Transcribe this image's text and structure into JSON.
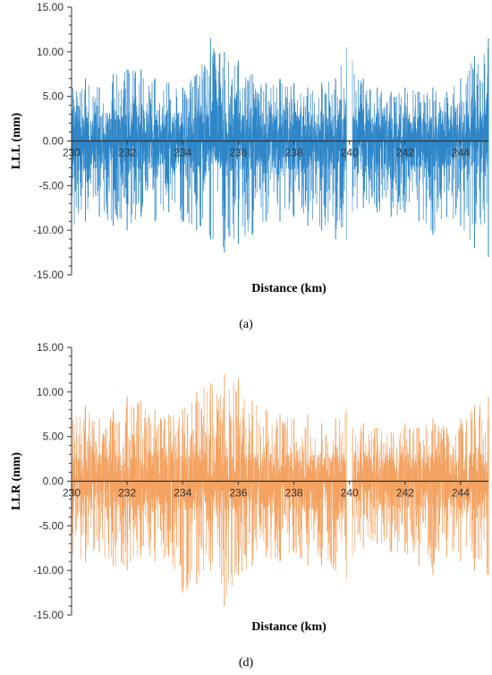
{
  "chart_data": [
    {
      "type": "line",
      "panel_label": "(a)",
      "xlabel": "Distance (km)",
      "ylabel": "LLL (mm)",
      "xlim": [
        230,
        245
      ],
      "ylim": [
        -15,
        15
      ],
      "x_ticks": [
        "230",
        "232",
        "234",
        "236",
        "238",
        "240",
        "242",
        "244"
      ],
      "x_tick_values": [
        230,
        232,
        234,
        236,
        238,
        240,
        242,
        244
      ],
      "y_ticks": [
        "-15.00",
        "-10.00",
        "-5.00",
        "0.00",
        "5.00",
        "10.00",
        "15.00"
      ],
      "y_tick_values": [
        -15,
        -10,
        -5,
        0,
        5,
        10,
        15
      ],
      "color": "#2e86c8",
      "grid": false,
      "gap": [
        239.95,
        240.05
      ],
      "x": [
        230.0,
        230.5,
        231.0,
        231.5,
        232.0,
        232.5,
        233.0,
        233.5,
        234.0,
        234.5,
        235.0,
        235.5,
        236.0,
        236.5,
        237.0,
        237.5,
        238.0,
        238.5,
        239.0,
        239.5,
        239.9,
        240.1,
        240.5,
        241.0,
        241.5,
        242.0,
        242.5,
        243.0,
        243.5,
        244.0,
        244.5,
        245.0
      ],
      "upper": [
        6.5,
        7.0,
        6.0,
        7.5,
        8.0,
        8.0,
        7.0,
        6.5,
        6.0,
        7.5,
        11.5,
        10.0,
        9.0,
        7.5,
        6.5,
        7.0,
        6.5,
        6.0,
        6.5,
        7.0,
        10.5,
        9.0,
        7.0,
        6.0,
        5.5,
        6.0,
        5.5,
        6.0,
        5.5,
        7.0,
        9.5,
        11.5
      ],
      "lower": [
        -10.5,
        -9.0,
        -8.5,
        -9.5,
        -10.0,
        -8.5,
        -9.0,
        -8.0,
        -9.0,
        -10.0,
        -11.0,
        -12.5,
        -11.5,
        -10.5,
        -9.0,
        -9.0,
        -8.5,
        -9.5,
        -10.0,
        -11.0,
        -11.0,
        -8.0,
        -7.5,
        -8.0,
        -8.5,
        -8.0,
        -9.0,
        -10.5,
        -8.5,
        -9.5,
        -12.0,
        -13.0
      ]
    },
    {
      "type": "line",
      "panel_label": "(d)",
      "xlabel": "Distance (km)",
      "ylabel": "LLR (mm)",
      "xlim": [
        230,
        245
      ],
      "ylim": [
        -15,
        15
      ],
      "x_ticks": [
        "230",
        "232",
        "234",
        "236",
        "238",
        "240",
        "242",
        "244"
      ],
      "x_tick_values": [
        230,
        232,
        234,
        236,
        238,
        240,
        242,
        244
      ],
      "y_ticks": [
        "-15.00",
        "-10.00",
        "-5.00",
        "0.00",
        "5.00",
        "10.00",
        "15.00"
      ],
      "y_tick_values": [
        -15,
        -10,
        -5,
        0,
        5,
        10,
        15
      ],
      "color": "#f4a261",
      "grid": false,
      "gap": [
        239.95,
        240.05
      ],
      "x": [
        230.0,
        230.5,
        231.0,
        231.5,
        232.0,
        232.5,
        233.0,
        233.5,
        234.0,
        234.5,
        235.0,
        235.5,
        236.0,
        236.5,
        237.0,
        237.5,
        238.0,
        238.5,
        239.0,
        239.5,
        239.9,
        240.1,
        240.5,
        241.0,
        241.5,
        242.0,
        242.5,
        243.0,
        243.5,
        244.0,
        244.5,
        245.0
      ],
      "upper": [
        7.0,
        8.5,
        7.0,
        8.0,
        9.5,
        9.0,
        8.0,
        7.5,
        8.0,
        10.0,
        11.0,
        12.0,
        11.5,
        9.0,
        8.0,
        7.5,
        7.0,
        7.5,
        6.5,
        7.0,
        8.0,
        6.0,
        6.5,
        6.0,
        5.5,
        6.5,
        6.0,
        7.0,
        6.0,
        7.0,
        8.5,
        9.5
      ],
      "lower": [
        -8.5,
        -9.0,
        -8.0,
        -9.5,
        -10.0,
        -8.5,
        -9.0,
        -8.5,
        -12.5,
        -11.5,
        -10.0,
        -14.0,
        -10.5,
        -9.5,
        -8.5,
        -9.0,
        -8.0,
        -9.5,
        -9.5,
        -10.0,
        -11.0,
        -8.5,
        -7.5,
        -7.0,
        -8.0,
        -8.0,
        -9.5,
        -10.5,
        -8.5,
        -9.0,
        -10.0,
        -10.5
      ]
    }
  ]
}
